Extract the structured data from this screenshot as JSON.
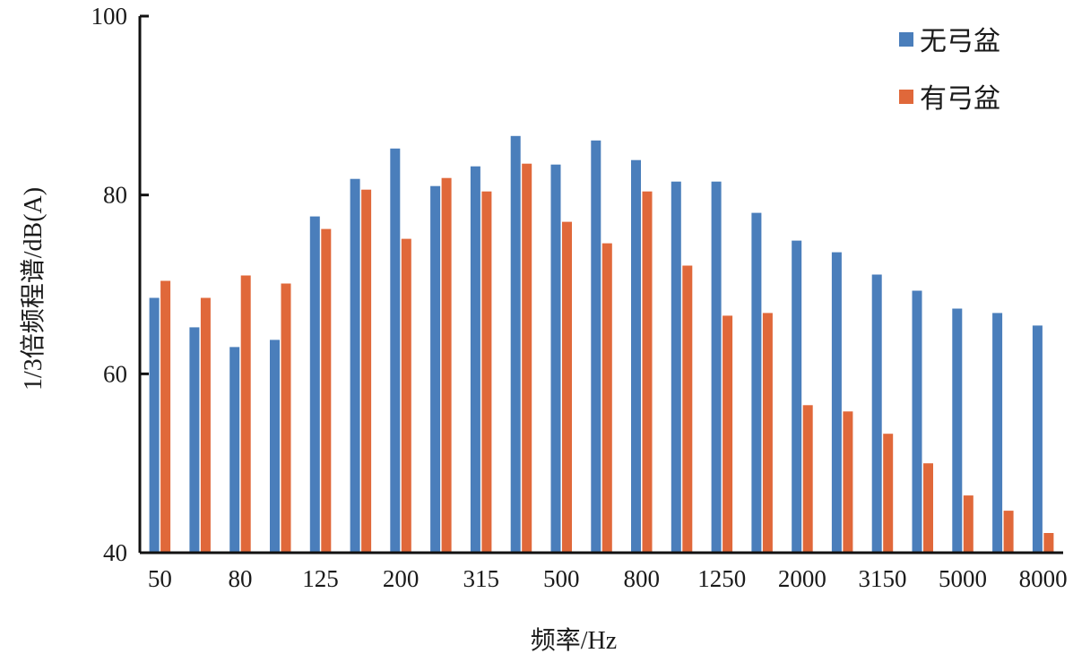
{
  "chart_data": {
    "type": "bar",
    "title": "",
    "xlabel": "频率/Hz",
    "ylabel": "1/3倍频程谱/dB(A)",
    "ylim": [
      40,
      100
    ],
    "yticks": [
      40,
      60,
      80,
      100
    ],
    "grid": false,
    "legend_position": "top-right",
    "categories": [
      "50",
      "63",
      "80",
      "100",
      "125",
      "160",
      "200",
      "250",
      "315",
      "400",
      "500",
      "630",
      "800",
      "1000",
      "1250",
      "1600",
      "2000",
      "2500",
      "3150",
      "4000",
      "5000",
      "6300",
      "8000"
    ],
    "shown_tick_labels": [
      "50",
      "80",
      "125",
      "200",
      "315",
      "500",
      "800",
      "1250",
      "2000",
      "3150",
      "5000",
      "8000"
    ],
    "series": [
      {
        "name": "无弓盆",
        "color": "#4a7ebb",
        "values": [
          68.5,
          65.2,
          63.0,
          63.8,
          77.6,
          81.8,
          85.2,
          81.0,
          83.2,
          86.6,
          83.4,
          86.1,
          83.9,
          81.5,
          81.5,
          78.0,
          74.9,
          73.6,
          71.1,
          69.3,
          67.3,
          66.8,
          65.4
        ]
      },
      {
        "name": "有弓盆",
        "color": "#e0683a",
        "values": [
          70.4,
          68.5,
          71.0,
          70.1,
          76.2,
          80.6,
          75.1,
          81.9,
          80.4,
          83.5,
          77.0,
          74.6,
          80.4,
          72.1,
          66.5,
          66.8,
          56.5,
          55.8,
          53.3,
          50.0,
          46.4,
          44.7,
          42.2
        ]
      }
    ]
  }
}
